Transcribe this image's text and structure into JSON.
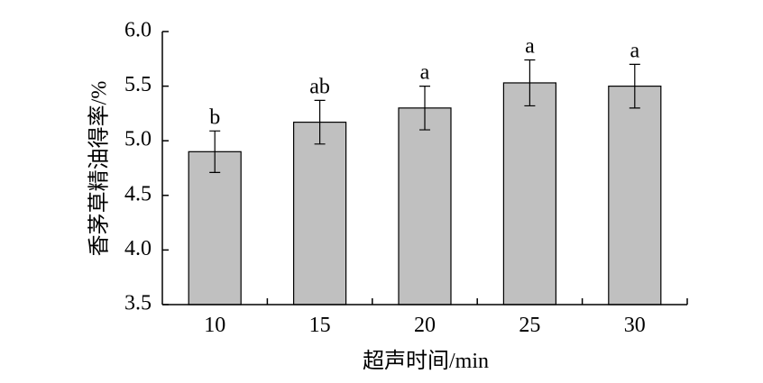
{
  "chart_data": {
    "type": "bar",
    "x_label": "超声时间/min",
    "y_label": "香茅草精油得率/%",
    "categories": [
      "10",
      "15",
      "20",
      "25",
      "30"
    ],
    "values": [
      4.9,
      5.17,
      5.3,
      5.53,
      5.5
    ],
    "errors": [
      0.19,
      0.2,
      0.2,
      0.21,
      0.2
    ],
    "annotations": [
      "b",
      "ab",
      "a",
      "a",
      "a"
    ],
    "color": "#c0c0c0",
    "ylim": [
      3.5,
      6.0
    ],
    "yticks": [
      3.5,
      {
        "value": 4.0,
        "label": "4.0"
      },
      4.5,
      {
        "value": 5.0,
        "label": "5.0"
      },
      5.5,
      {
        "value": 6.0,
        "label": "6.0"
      }
    ]
  }
}
